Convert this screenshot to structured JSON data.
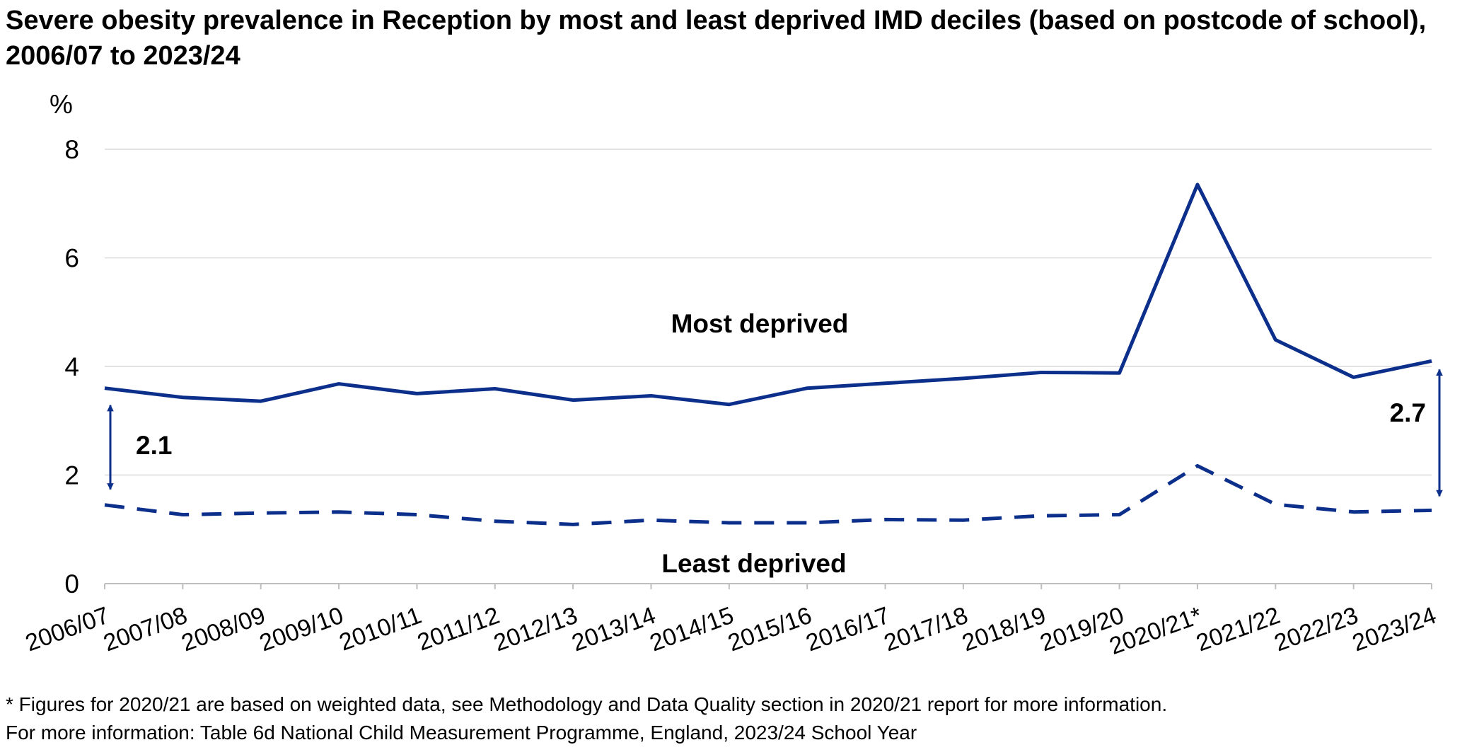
{
  "title": "Severe obesity prevalence in Reception by most and least deprived IMD deciles (based on postcode of school), 2006/07 to 2023/24",
  "footnotes": [
    "* Figures for 2020/21 are based on weighted data, see Methodology and Data Quality section in 2020/21 report for more information.",
    "For more information: Table 6d National Child Measurement Programme, England, 2023/24 School Year"
  ],
  "colors": {
    "series": "#0b2f8a",
    "gridline": "#d9d9d9",
    "axis": "#bfbfbf"
  },
  "chart_data": {
    "type": "line",
    "title": "Severe obesity prevalence in Reception by most and least deprived IMD deciles (based on postcode of school), 2006/07 to 2023/24",
    "xlabel": "",
    "ylabel": "%",
    "ylim": [
      0,
      8
    ],
    "yticks": [
      0,
      2,
      4,
      6,
      8
    ],
    "grid": true,
    "categories": [
      "2006/07",
      "2007/08",
      "2008/09",
      "2009/10",
      "2010/11",
      "2011/12",
      "2012/13",
      "2013/14",
      "2014/15",
      "2015/16",
      "2016/17",
      "2017/18",
      "2018/19",
      "2019/20",
      "2020/21*",
      "2021/22",
      "2022/23",
      "2023/24"
    ],
    "series": [
      {
        "name": "Most deprived",
        "style": "solid",
        "values": [
          3.6,
          3.43,
          3.36,
          3.68,
          3.5,
          3.59,
          3.38,
          3.46,
          3.3,
          3.6,
          3.69,
          3.78,
          3.89,
          3.88,
          7.35,
          4.49,
          3.8,
          4.1
        ]
      },
      {
        "name": "Least deprived",
        "style": "dashed",
        "values": [
          1.45,
          1.27,
          1.3,
          1.32,
          1.27,
          1.15,
          1.09,
          1.17,
          1.12,
          1.12,
          1.18,
          1.17,
          1.25,
          1.27,
          2.17,
          1.46,
          1.32,
          1.35
        ]
      }
    ],
    "annotations": [
      {
        "text": "2.1",
        "category": "2006/07"
      },
      {
        "text": "2.7",
        "category": "2023/24"
      }
    ]
  }
}
